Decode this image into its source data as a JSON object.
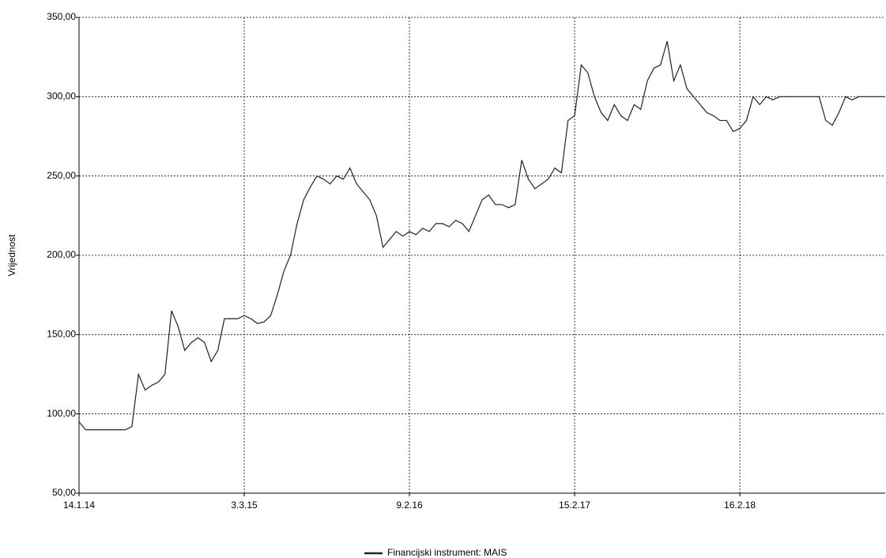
{
  "chart_data": {
    "type": "line",
    "y_label": "Vrijednost",
    "categories": [
      "14.1.14",
      null,
      null,
      null,
      null,
      null,
      null,
      null,
      null,
      null,
      null,
      null,
      null,
      null,
      null,
      null,
      null,
      null,
      null,
      null,
      null,
      null,
      null,
      null,
      null,
      "3.3.15",
      null,
      null,
      null,
      null,
      null,
      null,
      null,
      null,
      null,
      null,
      null,
      null,
      null,
      null,
      null,
      null,
      null,
      null,
      null,
      null,
      null,
      null,
      null,
      null,
      "9.2.16",
      null,
      null,
      null,
      null,
      null,
      null,
      null,
      null,
      null,
      null,
      null,
      null,
      null,
      null,
      null,
      null,
      null,
      null,
      null,
      null,
      null,
      null,
      null,
      null,
      "15.2.17",
      null,
      null,
      null,
      null,
      null,
      null,
      null,
      null,
      null,
      null,
      null,
      null,
      null,
      null,
      null,
      null,
      null,
      null,
      null,
      null,
      null,
      null,
      null,
      null,
      "16.2.18",
      null,
      null,
      null,
      null,
      null,
      null,
      null,
      null,
      null,
      null,
      null,
      null,
      null,
      null,
      null,
      null,
      null,
      null,
      null,
      null,
      null,
      null
    ],
    "series": [
      {
        "name": "Financijski instrument: MAIS",
        "color": "#222222",
        "values": [
          95,
          90,
          90,
          90,
          90,
          90,
          90,
          90,
          92,
          125,
          115,
          118,
          120,
          125,
          165,
          155,
          140,
          145,
          148,
          145,
          133,
          140,
          160,
          160,
          160,
          162,
          160,
          157,
          158,
          162,
          175,
          190,
          200,
          220,
          235,
          243,
          250,
          248,
          245,
          250,
          248,
          255,
          245,
          240,
          235,
          225,
          205,
          210,
          215,
          212,
          215,
          213,
          217,
          215,
          220,
          220,
          218,
          222,
          220,
          215,
          225,
          235,
          238,
          232,
          232,
          230,
          232,
          260,
          248,
          242,
          245,
          248,
          255,
          252,
          285,
          288,
          320,
          315,
          300,
          290,
          285,
          295,
          288,
          285,
          295,
          292,
          310,
          318,
          320,
          335,
          310,
          320,
          305,
          300,
          295,
          290,
          288,
          285,
          285,
          278,
          280,
          285,
          300,
          295,
          300,
          298,
          300,
          300,
          300,
          300,
          300,
          300,
          300,
          285,
          282,
          290,
          300,
          298,
          300,
          300,
          300,
          300,
          300
        ]
      }
    ],
    "ylim": [
      50,
      350
    ],
    "yticks": [
      {
        "value": 50,
        "label": "50,00"
      },
      {
        "value": 100,
        "label": "100,00"
      },
      {
        "value": 150,
        "label": "150,00"
      },
      {
        "value": 200,
        "label": "200,00"
      },
      {
        "value": 250,
        "label": "250,00"
      },
      {
        "value": 300,
        "label": "300,00"
      },
      {
        "value": 350,
        "label": "350,00"
      }
    ],
    "grid": true
  }
}
